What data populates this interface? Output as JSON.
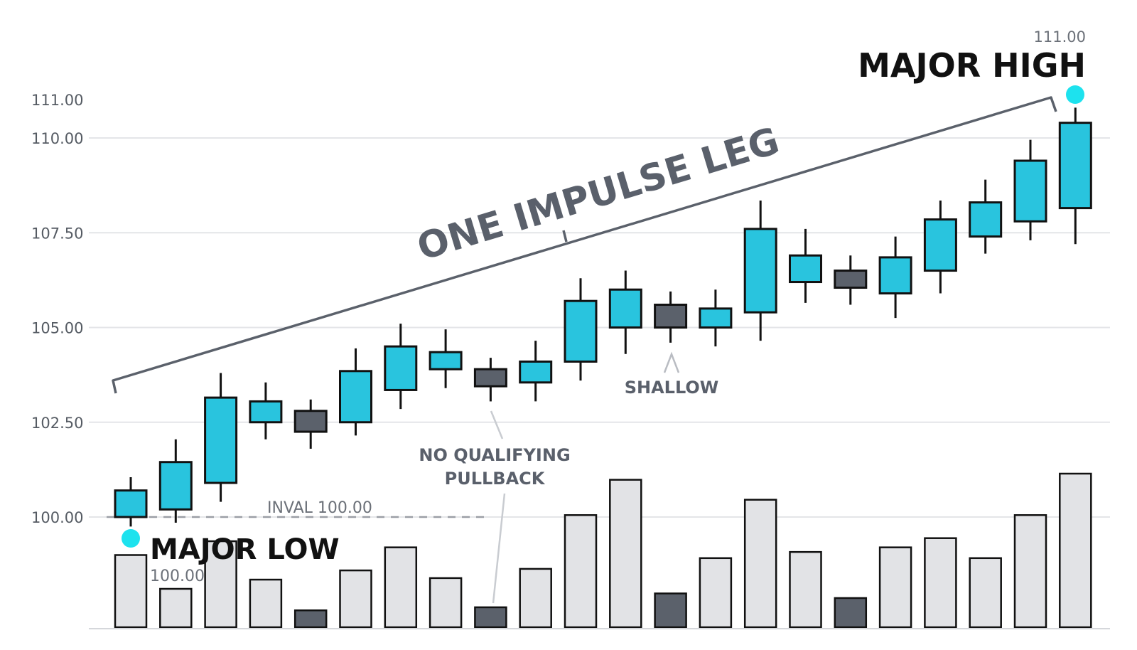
{
  "chart_data": {
    "type": "candlestick",
    "y_ticks": [
      "100.00",
      "102.50",
      "105.00",
      "107.50",
      "110.00",
      "111.00"
    ],
    "ylim": [
      100,
      111
    ],
    "grid": true,
    "colors": {
      "up": "#29c4de",
      "down": "#5b616b",
      "volume": "#e2e3e6",
      "volume_down": "#5b616b",
      "marker": "#1de2ee",
      "outline": "#111111"
    },
    "candles": [
      {
        "open": 100.0,
        "high": 101.05,
        "low": 99.75,
        "close": 100.7,
        "volume": 0.47
      },
      {
        "open": 100.2,
        "high": 102.05,
        "low": 99.85,
        "close": 101.45,
        "volume": 0.25
      },
      {
        "open": 100.9,
        "high": 103.8,
        "low": 100.4,
        "close": 103.15,
        "volume": 0.56
      },
      {
        "open": 102.5,
        "high": 103.55,
        "low": 102.05,
        "close": 103.05,
        "volume": 0.31
      },
      {
        "open": 102.8,
        "high": 103.1,
        "low": 101.8,
        "close": 102.25,
        "volume": 0.11,
        "down": true
      },
      {
        "open": 102.5,
        "high": 104.45,
        "low": 102.15,
        "close": 103.85,
        "volume": 0.37
      },
      {
        "open": 103.35,
        "high": 105.1,
        "low": 102.85,
        "close": 104.5,
        "volume": 0.52
      },
      {
        "open": 103.9,
        "high": 104.95,
        "low": 103.4,
        "close": 104.35,
        "volume": 0.32
      },
      {
        "open": 103.9,
        "high": 104.2,
        "low": 103.05,
        "close": 103.45,
        "volume": 0.13,
        "down": true
      },
      {
        "open": 103.55,
        "high": 104.65,
        "low": 103.05,
        "close": 104.1,
        "volume": 0.38
      },
      {
        "open": 104.1,
        "high": 106.3,
        "low": 103.6,
        "close": 105.7,
        "volume": 0.73
      },
      {
        "open": 105.0,
        "high": 106.5,
        "low": 104.3,
        "close": 106.0,
        "volume": 0.96
      },
      {
        "open": 105.6,
        "high": 105.95,
        "low": 104.6,
        "close": 105.0,
        "volume": 0.22,
        "down": true
      },
      {
        "open": 105.0,
        "high": 106.0,
        "low": 104.5,
        "close": 105.5,
        "volume": 0.45
      },
      {
        "open": 105.4,
        "high": 108.35,
        "low": 104.65,
        "close": 107.6,
        "volume": 0.83
      },
      {
        "open": 106.2,
        "high": 107.6,
        "low": 105.65,
        "close": 106.9,
        "volume": 0.49
      },
      {
        "open": 106.5,
        "high": 106.9,
        "low": 105.6,
        "close": 106.05,
        "volume": 0.19,
        "down": true
      },
      {
        "open": 105.9,
        "high": 107.4,
        "low": 105.25,
        "close": 106.85,
        "volume": 0.52
      },
      {
        "open": 106.5,
        "high": 108.35,
        "low": 105.9,
        "close": 107.85,
        "volume": 0.58
      },
      {
        "open": 107.4,
        "high": 108.9,
        "low": 106.95,
        "close": 108.3,
        "volume": 0.45
      },
      {
        "open": 107.8,
        "high": 109.95,
        "low": 107.3,
        "close": 109.4,
        "volume": 0.73
      },
      {
        "open": 108.15,
        "high": 110.8,
        "low": 107.2,
        "close": 110.4,
        "volume": 1.0
      }
    ],
    "annotations": {
      "major_low": {
        "label": "MAJOR LOW",
        "value": "100.00"
      },
      "major_high": {
        "label": "MAJOR HIGH",
        "value": "111.00"
      },
      "impulse": {
        "label": "ONE IMPULSE LEG"
      },
      "inval": {
        "label": "INVAL 100.00",
        "level": 100.0
      },
      "shallow": {
        "label": "SHALLOW"
      },
      "pullback": {
        "label_line1": "NO QUALIFYING",
        "label_line2": "PULLBACK"
      }
    }
  }
}
